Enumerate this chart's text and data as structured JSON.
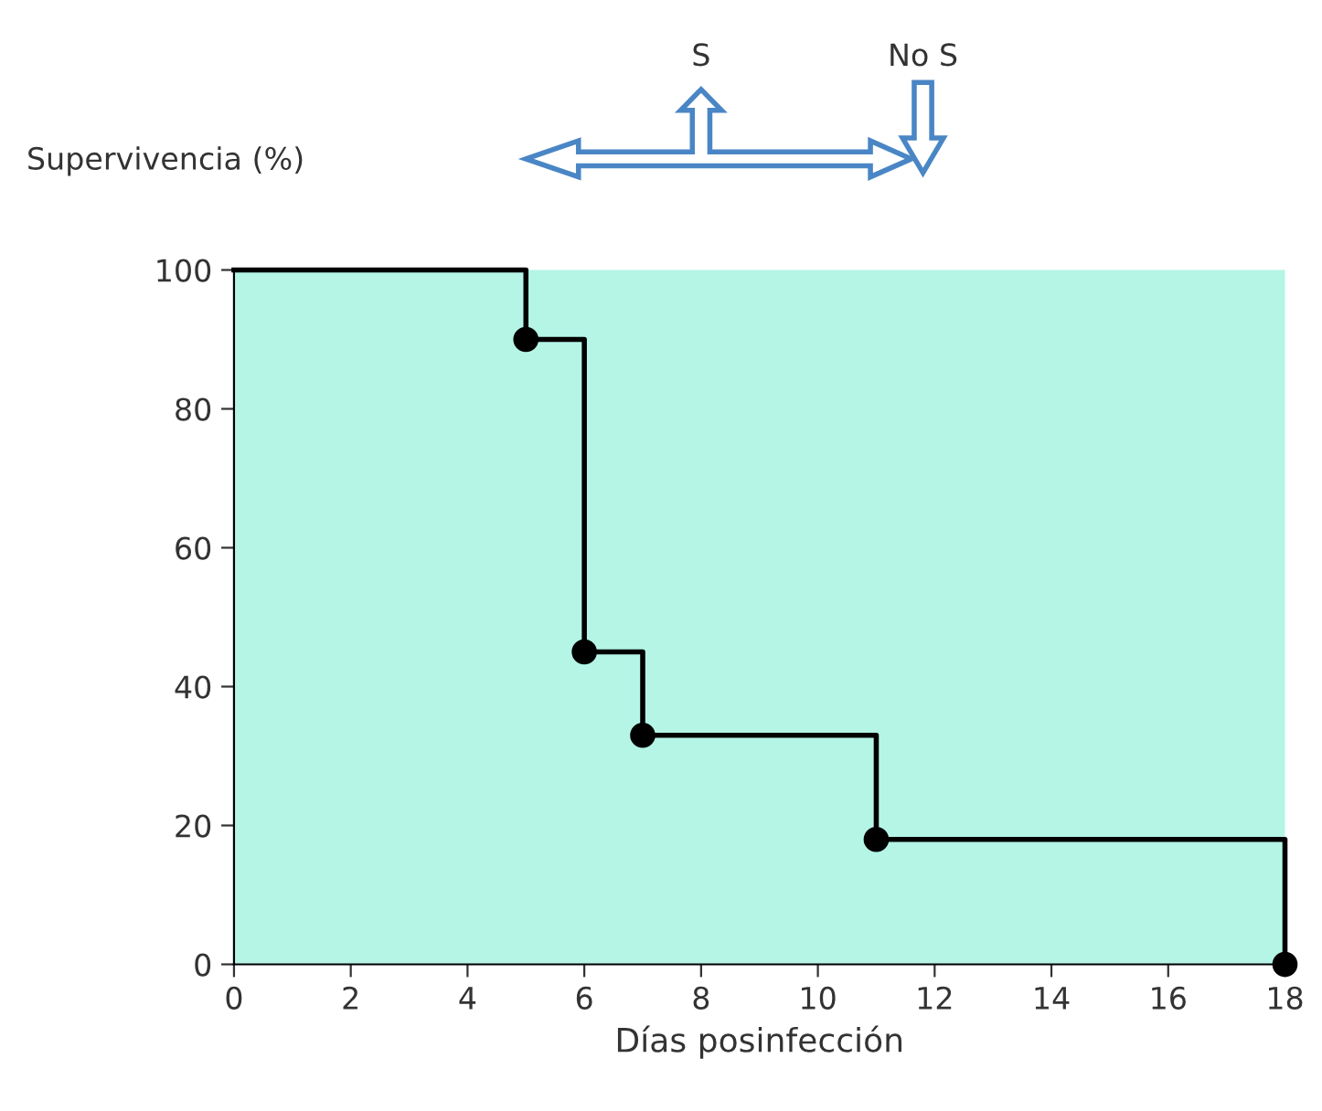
{
  "chart_data": {
    "type": "step",
    "ylabel": "Supervivencia (%)",
    "xlabel": "Días posinfección",
    "series": [
      {
        "color": "#000000",
        "marker": "none",
        "x": [
          0,
          5,
          6,
          7,
          11,
          18
        ],
        "values": [
          100,
          90,
          45,
          33,
          18,
          0
        ]
      },
      {
        "type": "scatter",
        "color": "#000000",
        "marker": "circle",
        "x": [
          5,
          6,
          7,
          11,
          18
        ],
        "values": [
          90,
          45,
          33,
          18,
          0
        ]
      }
    ],
    "annotations": [
      "S",
      "No S"
    ],
    "xlim": [
      0,
      18
    ],
    "xticks": [
      0,
      2,
      4,
      6,
      8,
      10,
      12,
      14,
      16,
      18
    ],
    "ylim": [
      0,
      100
    ],
    "yticks": [
      0,
      20,
      40,
      60,
      80,
      100
    ],
    "grid": false,
    "legend": false
  }
}
